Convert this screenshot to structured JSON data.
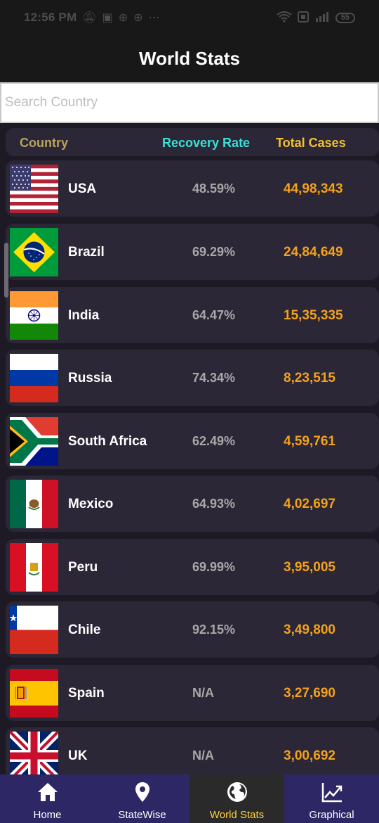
{
  "status_bar": {
    "time": "12:56 PM",
    "left_icons": [
      "mute-icon",
      "notification-icon",
      "app-icon",
      "app-icon",
      "more-icon"
    ],
    "right_icons": [
      "wifi-icon",
      "data-icon",
      "signal-icon"
    ],
    "battery": "55"
  },
  "header": {
    "title": "World Stats"
  },
  "search": {
    "placeholder": "Search Country",
    "value": ""
  },
  "table": {
    "headers": {
      "country": "Country",
      "recovery": "Recovery Rate",
      "total": "Total Cases"
    },
    "colors": {
      "country": "#b9a25f",
      "recovery": "#39e0d3",
      "total": "#f4c12d",
      "value": "#f4a21b"
    },
    "rows": [
      {
        "country": "USA",
        "flag": "usa-flag",
        "recovery": "48.59%",
        "total": "44,98,343"
      },
      {
        "country": "Brazil",
        "flag": "brazil-flag",
        "recovery": "69.29%",
        "total": "24,84,649"
      },
      {
        "country": "India",
        "flag": "india-flag",
        "recovery": "64.47%",
        "total": "15,35,335"
      },
      {
        "country": "Russia",
        "flag": "russia-flag",
        "recovery": "74.34%",
        "total": "8,23,515"
      },
      {
        "country": "South Africa",
        "flag": "south-africa-flag",
        "recovery": "62.49%",
        "total": "4,59,761"
      },
      {
        "country": "Mexico",
        "flag": "mexico-flag",
        "recovery": "64.93%",
        "total": "4,02,697"
      },
      {
        "country": "Peru",
        "flag": "peru-flag",
        "recovery": "69.99%",
        "total": "3,95,005"
      },
      {
        "country": "Chile",
        "flag": "chile-flag",
        "recovery": "92.15%",
        "total": "3,49,800"
      },
      {
        "country": "Spain",
        "flag": "spain-flag",
        "recovery": "N/A",
        "total": "3,27,690"
      },
      {
        "country": "UK",
        "flag": "uk-flag",
        "recovery": "N/A",
        "total": "3,00,692"
      }
    ]
  },
  "nav": {
    "items": [
      {
        "label": "Home",
        "icon": "home-icon",
        "active": false
      },
      {
        "label": "StateWise",
        "icon": "location-pin-icon",
        "active": false
      },
      {
        "label": "World Stats",
        "icon": "globe-icon",
        "active": true
      },
      {
        "label": "Graphical",
        "icon": "chart-line-icon",
        "active": false
      }
    ],
    "active_color": "#ffd23f",
    "background": "#2e2766"
  }
}
